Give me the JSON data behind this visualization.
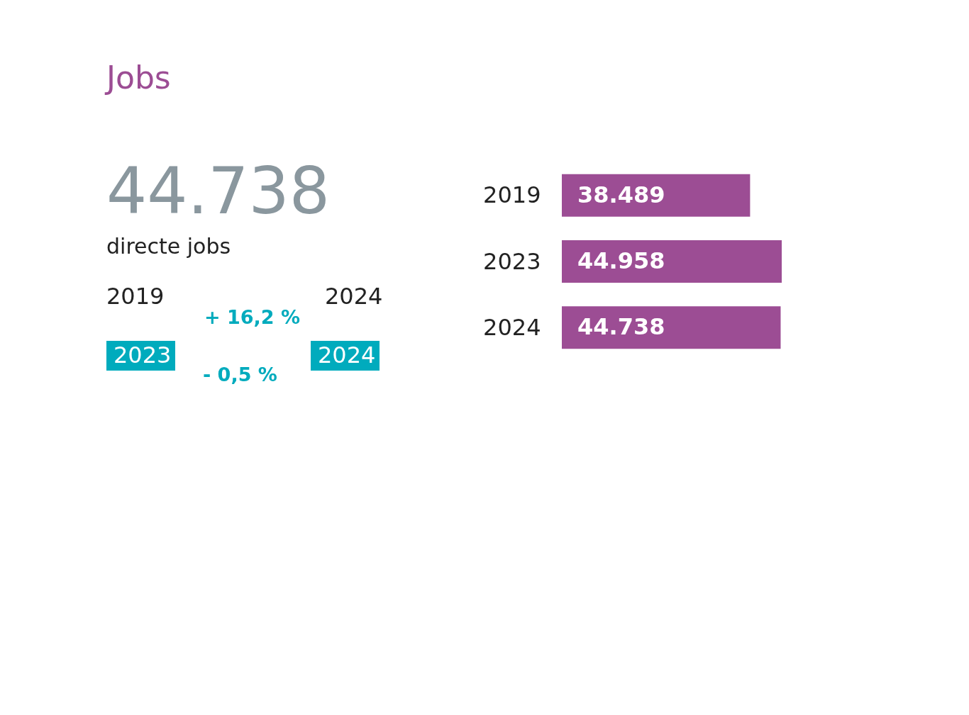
{
  "chart_data": [
    {
      "type": "other",
      "title": "Jobs",
      "annotations": [
        "44.738",
        "directe jobs",
        "2019",
        "2024",
        "+ 16,2 %",
        "2023",
        "2024",
        "- 0,5 %"
      ]
    },
    {
      "type": "bar",
      "orientation": "horizontal",
      "categories": [
        "2019",
        "2023",
        "2024"
      ],
      "values": [
        38489,
        44958,
        44738
      ],
      "color": "#9c4d94",
      "value_labels": [
        "38.489",
        "44.958",
        "44.738"
      ],
      "tick_labels": "y",
      "grid": false
    }
  ]
}
